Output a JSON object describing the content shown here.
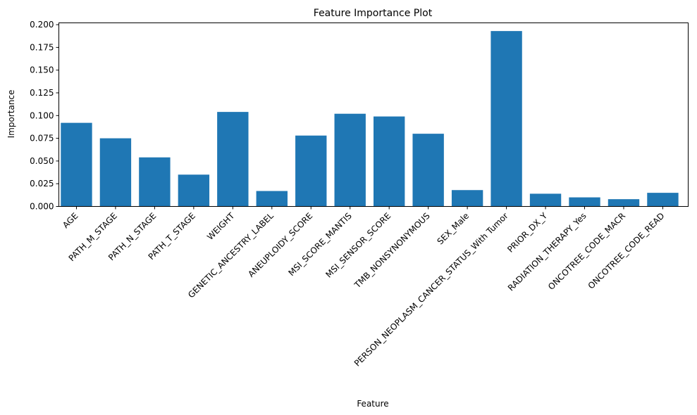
{
  "chart_data": {
    "type": "bar",
    "title": "Feature Importance Plot",
    "xlabel": "Feature",
    "ylabel": "Importance",
    "categories": [
      "AGE",
      "PATH_M_STAGE",
      "PATH_N_STAGE",
      "PATH_T_STAGE",
      "WEIGHT",
      "GENETIC_ANCESTRY_LABEL",
      "ANEUPLOIDY_SCORE",
      "MSI_SCORE_MANTIS",
      "MSI_SENSOR_SCORE",
      "TMB_NONSYNONYMOUS",
      "SEX_Male",
      "PERSON_NEOPLASM_CANCER_STATUS_With Tumor",
      "PRIOR_DX_Y",
      "RADIATION_THERAPY_Yes",
      "ONCOTREE_CODE_MACR",
      "ONCOTREE_CODE_READ"
    ],
    "values": [
      0.092,
      0.075,
      0.054,
      0.035,
      0.104,
      0.017,
      0.078,
      0.102,
      0.099,
      0.08,
      0.018,
      0.193,
      0.014,
      0.01,
      0.008,
      0.015
    ],
    "ylim": [
      0,
      0.202
    ],
    "yticks": [
      "0.000",
      "0.025",
      "0.050",
      "0.075",
      "0.100",
      "0.125",
      "0.150",
      "0.175",
      "0.200"
    ],
    "grid": false,
    "legend": "none",
    "bar_color": "#1f77b4"
  }
}
